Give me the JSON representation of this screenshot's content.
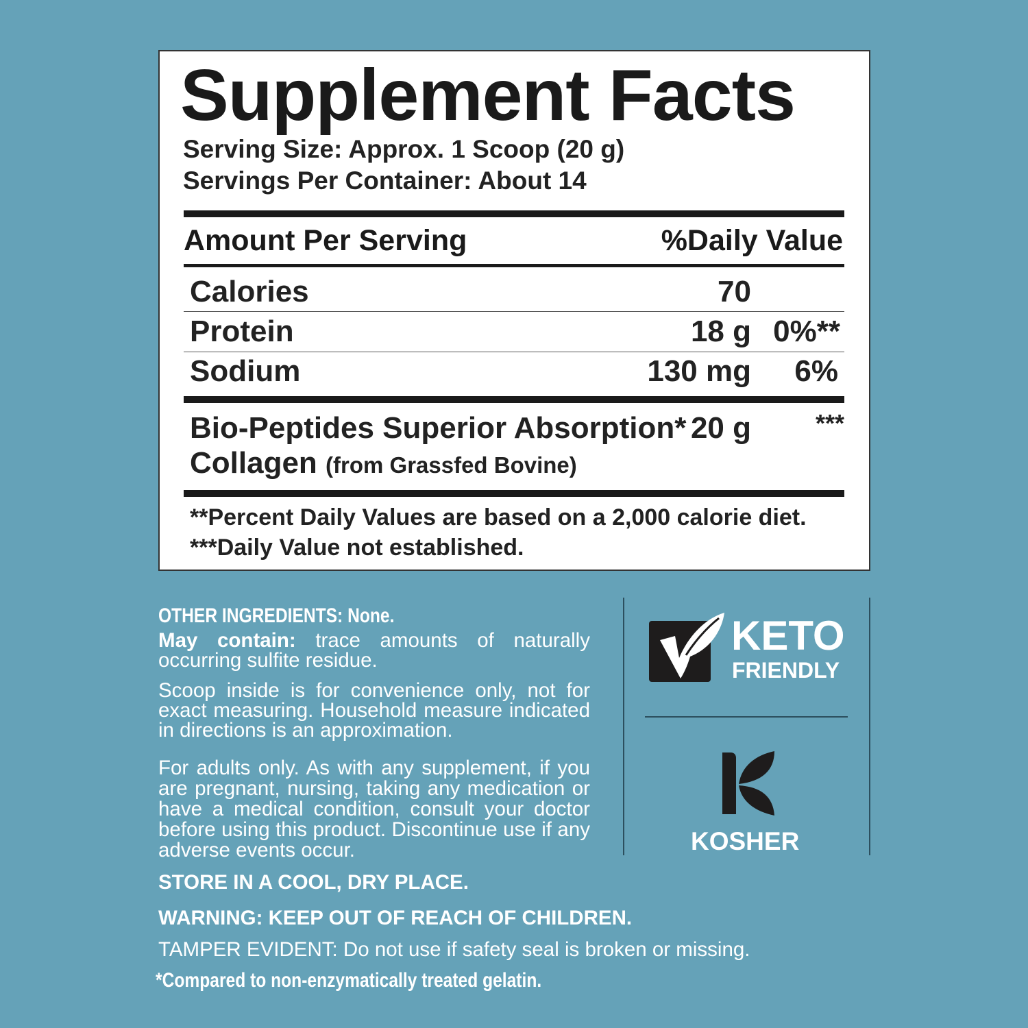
{
  "panel": {
    "title": "Supplement Facts",
    "serving_size": "Serving Size: Approx. 1 Scoop (20 g)",
    "servings_per_container": "Servings Per Container: About 14",
    "header_amount": "Amount Per Serving",
    "header_dv": "%Daily Value",
    "rows": [
      {
        "name": "Calories",
        "amount": "70",
        "dv": ""
      },
      {
        "name": "Protein",
        "amount": "18 g",
        "dv": "0%**"
      },
      {
        "name": "Sodium",
        "amount": "130 mg",
        "dv": "6%"
      }
    ],
    "ingredient": {
      "line1": "Bio-Peptides Superior Absorption*",
      "line2": "Collagen",
      "line2_sub": "(from Grassfed Bovine)",
      "amount": "20 g",
      "dv": "***"
    },
    "footnote1": "**Percent Daily Values are based on a 2,000 calorie diet.",
    "footnote2": "***Daily Value not established."
  },
  "other": {
    "ingredients_label": "OTHER INGREDIENTS:",
    "ingredients_value": "None.",
    "may_contain_label": "May contain:",
    "may_contain_text": "trace amounts of naturally occurring sulfite residue.",
    "scoop": "Scoop inside is for convenience only, not for exact measuring. Household measure indicated in directions is an approximation.",
    "adults": "For adults only. As with any supplement, if you are pregnant, nursing, taking any medication or have a medical condition, consult your doctor before using this product. Discontinue use if any adverse events occur.",
    "store": "STORE IN A COOL, DRY PLACE.",
    "warning": "WARNING: KEEP OUT OF REACH OF CHILDREN.",
    "tamper": "TAMPER EVIDENT: Do not use if safety seal is broken or missing.",
    "compared": "*Compared to non-enzymatically treated gelatin."
  },
  "badges": {
    "keto_line1": "KETO",
    "keto_line2": "FRIENDLY",
    "kosher": "KOSHER",
    "keto_icon": "checkmark-leaf-icon",
    "kosher_icon": "kosher-k-icon"
  },
  "colors": {
    "background": "#65a2b8",
    "panel": "#ffffff",
    "ink": "#1a1a1a"
  }
}
